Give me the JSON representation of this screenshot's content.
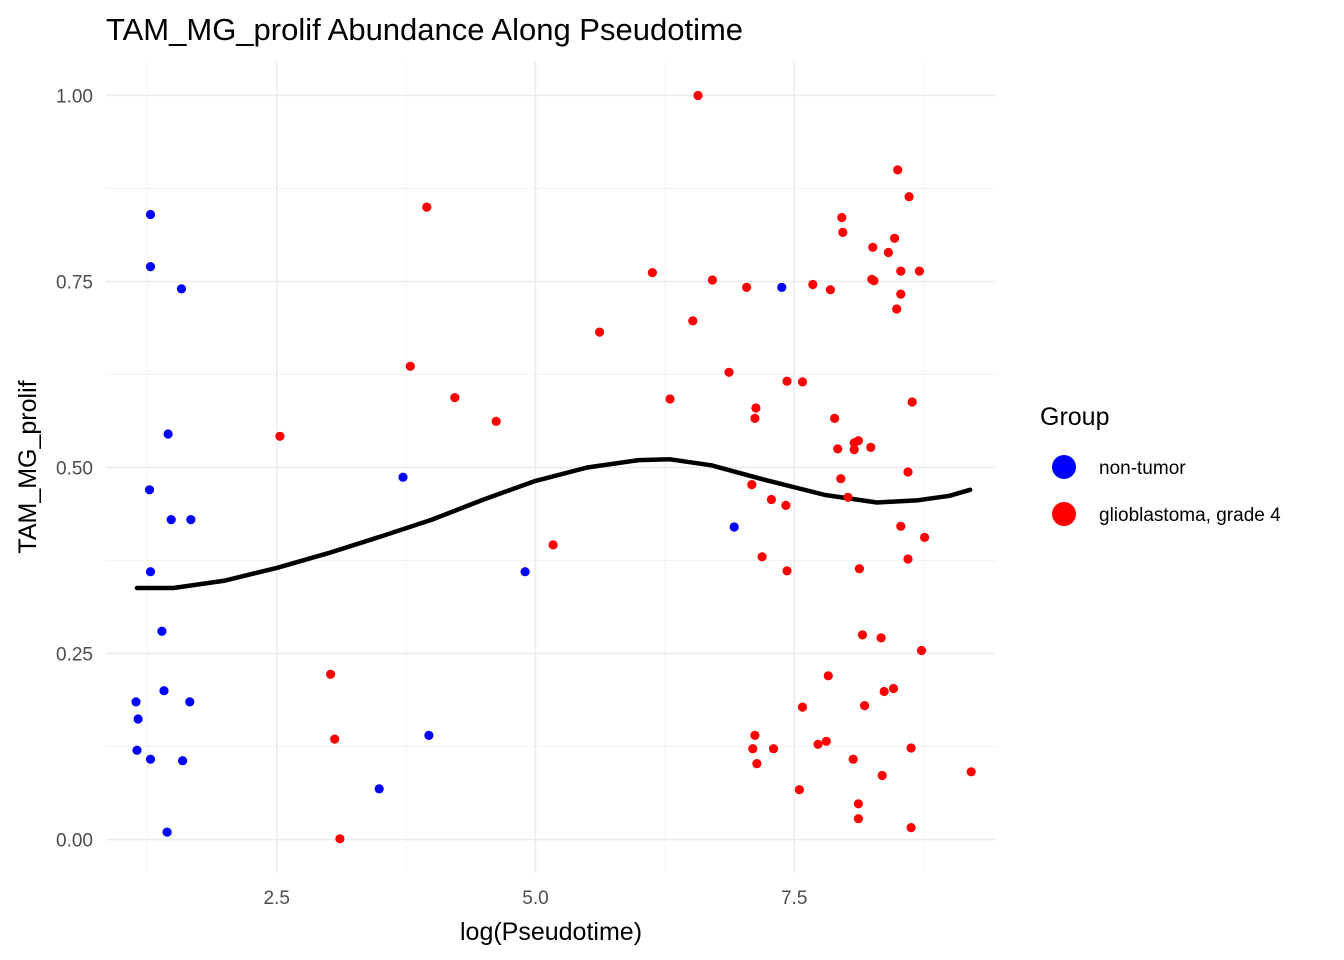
{
  "chart_data": {
    "type": "scatter",
    "title": "TAM_MG_prolif Abundance Along Pseudotime",
    "xlabel": "log(Pseudotime)",
    "ylabel": "TAM_MG_prolif",
    "xlim": [
      0.85,
      9.45
    ],
    "ylim": [
      -0.045,
      1.045
    ],
    "x_ticks": [
      2.5,
      5.0,
      7.5
    ],
    "x_tick_labels": [
      "2.5",
      "5.0",
      "7.5"
    ],
    "y_ticks": [
      0.0,
      0.25,
      0.5,
      0.75,
      1.0
    ],
    "y_tick_labels": [
      "0.00",
      "0.25",
      "0.50",
      "0.75",
      "1.00"
    ],
    "grid": true,
    "legend": {
      "title": "Group",
      "position": "right",
      "entries": [
        {
          "label": "non-tumor",
          "color": "#0000ff"
        },
        {
          "label": "glioblastoma, grade 4",
          "color": "#ff0000"
        }
      ]
    },
    "series": [
      {
        "name": "non-tumor",
        "color": "#0000ff",
        "points": [
          [
            1.28,
            0.84
          ],
          [
            1.28,
            0.77
          ],
          [
            1.58,
            0.74
          ],
          [
            1.45,
            0.545
          ],
          [
            1.27,
            0.47
          ],
          [
            1.48,
            0.43
          ],
          [
            1.67,
            0.43
          ],
          [
            1.28,
            0.36
          ],
          [
            1.39,
            0.28
          ],
          [
            1.41,
            0.2
          ],
          [
            1.66,
            0.185
          ],
          [
            1.14,
            0.185
          ],
          [
            1.16,
            0.162
          ],
          [
            1.15,
            0.12
          ],
          [
            1.28,
            0.108
          ],
          [
            1.59,
            0.106
          ],
          [
            1.44,
            0.01
          ],
          [
            3.72,
            0.487
          ],
          [
            3.97,
            0.14
          ],
          [
            3.49,
            0.068
          ],
          [
            4.9,
            0.36
          ],
          [
            6.92,
            0.42
          ],
          [
            7.38,
            0.742
          ]
        ]
      },
      {
        "name": "glioblastoma, grade 4",
        "color": "#ff0000",
        "points": [
          [
            6.57,
            1.0
          ],
          [
            8.5,
            0.9
          ],
          [
            8.61,
            0.864
          ],
          [
            3.95,
            0.85
          ],
          [
            7.96,
            0.836
          ],
          [
            7.97,
            0.816
          ],
          [
            8.47,
            0.808
          ],
          [
            8.26,
            0.796
          ],
          [
            8.41,
            0.789
          ],
          [
            6.13,
            0.762
          ],
          [
            8.53,
            0.764
          ],
          [
            8.71,
            0.764
          ],
          [
            8.25,
            0.753
          ],
          [
            8.27,
            0.751
          ],
          [
            6.71,
            0.752
          ],
          [
            7.68,
            0.746
          ],
          [
            7.04,
            0.742
          ],
          [
            7.85,
            0.739
          ],
          [
            8.53,
            0.733
          ],
          [
            8.49,
            0.713
          ],
          [
            6.52,
            0.697
          ],
          [
            5.62,
            0.682
          ],
          [
            3.79,
            0.636
          ],
          [
            6.87,
            0.628
          ],
          [
            7.43,
            0.616
          ],
          [
            7.58,
            0.615
          ],
          [
            4.22,
            0.594
          ],
          [
            6.3,
            0.592
          ],
          [
            8.64,
            0.588
          ],
          [
            7.13,
            0.58
          ],
          [
            7.12,
            0.566
          ],
          [
            7.89,
            0.566
          ],
          [
            4.62,
            0.562
          ],
          [
            2.53,
            0.542
          ],
          [
            8.12,
            0.536
          ],
          [
            8.08,
            0.533
          ],
          [
            7.92,
            0.525
          ],
          [
            8.24,
            0.527
          ],
          [
            8.08,
            0.524
          ],
          [
            8.6,
            0.494
          ],
          [
            7.95,
            0.485
          ],
          [
            7.09,
            0.477
          ],
          [
            8.02,
            0.46
          ],
          [
            7.28,
            0.457
          ],
          [
            7.42,
            0.449
          ],
          [
            8.53,
            0.421
          ],
          [
            8.76,
            0.406
          ],
          [
            5.17,
            0.396
          ],
          [
            7.19,
            0.38
          ],
          [
            8.6,
            0.377
          ],
          [
            8.13,
            0.364
          ],
          [
            7.43,
            0.361
          ],
          [
            8.16,
            0.275
          ],
          [
            8.34,
            0.271
          ],
          [
            8.73,
            0.254
          ],
          [
            3.02,
            0.222
          ],
          [
            7.83,
            0.22
          ],
          [
            8.46,
            0.203
          ],
          [
            8.37,
            0.199
          ],
          [
            8.18,
            0.18
          ],
          [
            7.58,
            0.178
          ],
          [
            7.12,
            0.14
          ],
          [
            3.06,
            0.135
          ],
          [
            7.81,
            0.132
          ],
          [
            7.73,
            0.128
          ],
          [
            7.1,
            0.122
          ],
          [
            7.3,
            0.122
          ],
          [
            8.63,
            0.123
          ],
          [
            8.07,
            0.108
          ],
          [
            7.14,
            0.102
          ],
          [
            9.21,
            0.091
          ],
          [
            8.35,
            0.086
          ],
          [
            7.55,
            0.067
          ],
          [
            8.12,
            0.048
          ],
          [
            8.12,
            0.028
          ],
          [
            8.63,
            0.016
          ],
          [
            3.11,
            0.001
          ]
        ]
      },
      {
        "name": "smooth",
        "color": "#000000",
        "type": "line",
        "points": [
          [
            1.15,
            0.338
          ],
          [
            1.5,
            0.338
          ],
          [
            2.0,
            0.348
          ],
          [
            2.5,
            0.365
          ],
          [
            3.0,
            0.385
          ],
          [
            3.5,
            0.407
          ],
          [
            4.0,
            0.43
          ],
          [
            4.5,
            0.457
          ],
          [
            5.0,
            0.482
          ],
          [
            5.5,
            0.5
          ],
          [
            6.0,
            0.51
          ],
          [
            6.3,
            0.511
          ],
          [
            6.7,
            0.503
          ],
          [
            7.2,
            0.484
          ],
          [
            7.8,
            0.463
          ],
          [
            8.3,
            0.453
          ],
          [
            8.7,
            0.456
          ],
          [
            9.0,
            0.462
          ],
          [
            9.2,
            0.47
          ]
        ]
      }
    ]
  }
}
